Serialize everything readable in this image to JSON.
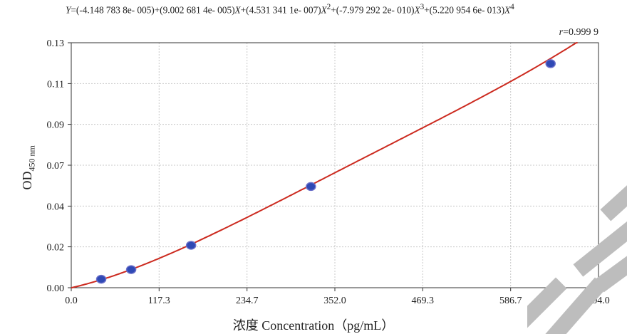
{
  "equation": {
    "y": "Y",
    "eq_part1": "=(-4.148 783 8e- 005)+(9.002 681 4e- 005)",
    "x1": "X",
    "eq_part2": "+(4.531 341 1e- 007)",
    "x2": "X",
    "pow2": "2",
    "eq_part3": "+(-7.979 292 2e- 010)",
    "x3": "X",
    "pow3": "3",
    "eq_part4": "+(5.220 954 6e- 013)",
    "x4": "X",
    "pow4": "4"
  },
  "r_label": {
    "symbol": "r",
    "value": "=0.999 9"
  },
  "colors": {
    "curve": "#cc2a1f",
    "point_fill": "#2f49b5",
    "point_stroke": "#6a6fc9",
    "grid": "#c8c8c8",
    "watermark": "#bdbdbd"
  },
  "chart_data": {
    "type": "scatter",
    "xlabel": "浓度 Concentration（pg/mL）",
    "ylabel_main": "OD",
    "ylabel_sub": "450 nm",
    "xlim": [
      0,
      704.0
    ],
    "ylim": [
      0,
      0.13
    ],
    "x_ticks": [
      0,
      117.3,
      234.7,
      352.0,
      469.3,
      586.7,
      704.0
    ],
    "x_tick_labels": [
      "0.0",
      "117.3",
      "234.7",
      "352.0",
      "469.3",
      "586.7",
      "704.0"
    ],
    "y_ticks": [
      0,
      0.0217,
      0.0433,
      0.065,
      0.0867,
      0.1083,
      0.13
    ],
    "y_tick_labels": [
      "0.00",
      "0.02",
      "0.04",
      "0.07",
      "0.09",
      "0.11",
      "0.13"
    ],
    "grid": true,
    "series": [
      {
        "x": [
          40,
          80,
          160,
          320,
          640
        ],
        "y": [
          0.0045,
          0.0096,
          0.0225,
          0.0537,
          0.1189
        ]
      }
    ],
    "fit_coefficients": [
      -4.1487838e-05,
      9.0026814e-05,
      4.5313411e-07,
      -7.9792922e-10,
      5.2209546e-13
    ]
  }
}
